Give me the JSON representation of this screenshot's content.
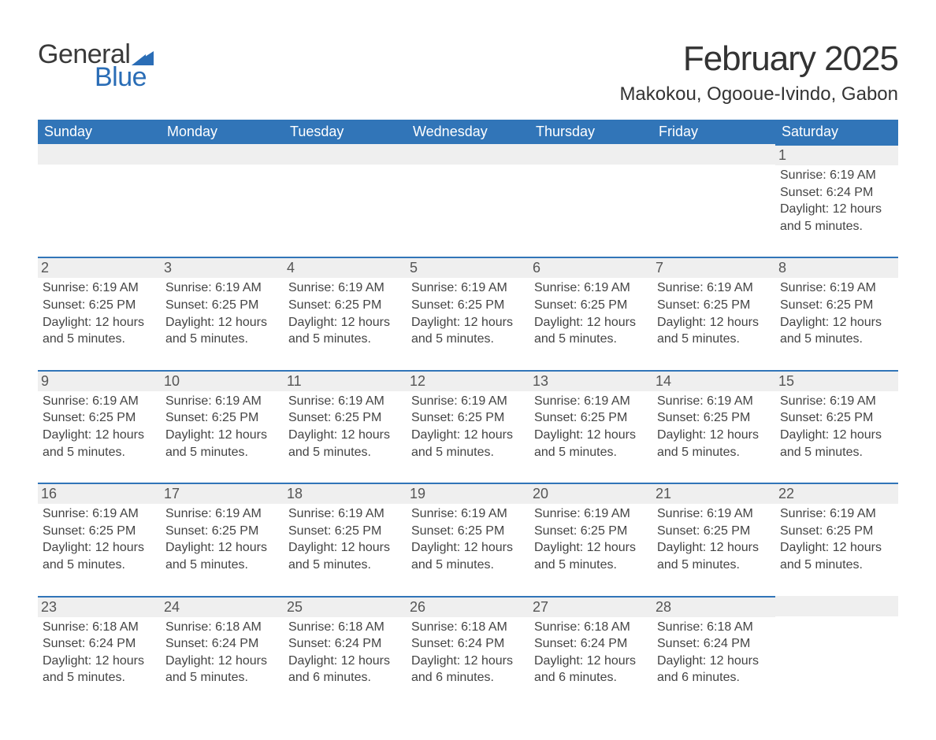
{
  "logo": {
    "text_general": "General",
    "text_blue": "Blue"
  },
  "header": {
    "month_title": "February 2025",
    "location": "Makokou, Ogooue-Ivindo, Gabon"
  },
  "colors": {
    "header_bg": "#3175b8",
    "header_text": "#ffffff",
    "day_stripe": "#efefef",
    "day_border": "#3175b8",
    "body_text": "#444444",
    "logo_dark": "#3a3a3a",
    "logo_blue": "#2a6db6",
    "page_bg": "#ffffff"
  },
  "typography": {
    "month_title_fontsize": 44,
    "location_fontsize": 24,
    "weekday_fontsize": 18,
    "daynum_fontsize": 18,
    "dayinfo_fontsize": 16,
    "logo_fontsize": 34
  },
  "weekdays": [
    "Sunday",
    "Monday",
    "Tuesday",
    "Wednesday",
    "Thursday",
    "Friday",
    "Saturday"
  ],
  "weeks": [
    [
      {
        "day": null
      },
      {
        "day": null
      },
      {
        "day": null
      },
      {
        "day": null
      },
      {
        "day": null
      },
      {
        "day": null
      },
      {
        "day": 1,
        "sunrise": "Sunrise: 6:19 AM",
        "sunset": "Sunset: 6:24 PM",
        "daylight": "Daylight: 12 hours and 5 minutes."
      }
    ],
    [
      {
        "day": 2,
        "sunrise": "Sunrise: 6:19 AM",
        "sunset": "Sunset: 6:25 PM",
        "daylight": "Daylight: 12 hours and 5 minutes."
      },
      {
        "day": 3,
        "sunrise": "Sunrise: 6:19 AM",
        "sunset": "Sunset: 6:25 PM",
        "daylight": "Daylight: 12 hours and 5 minutes."
      },
      {
        "day": 4,
        "sunrise": "Sunrise: 6:19 AM",
        "sunset": "Sunset: 6:25 PM",
        "daylight": "Daylight: 12 hours and 5 minutes."
      },
      {
        "day": 5,
        "sunrise": "Sunrise: 6:19 AM",
        "sunset": "Sunset: 6:25 PM",
        "daylight": "Daylight: 12 hours and 5 minutes."
      },
      {
        "day": 6,
        "sunrise": "Sunrise: 6:19 AM",
        "sunset": "Sunset: 6:25 PM",
        "daylight": "Daylight: 12 hours and 5 minutes."
      },
      {
        "day": 7,
        "sunrise": "Sunrise: 6:19 AM",
        "sunset": "Sunset: 6:25 PM",
        "daylight": "Daylight: 12 hours and 5 minutes."
      },
      {
        "day": 8,
        "sunrise": "Sunrise: 6:19 AM",
        "sunset": "Sunset: 6:25 PM",
        "daylight": "Daylight: 12 hours and 5 minutes."
      }
    ],
    [
      {
        "day": 9,
        "sunrise": "Sunrise: 6:19 AM",
        "sunset": "Sunset: 6:25 PM",
        "daylight": "Daylight: 12 hours and 5 minutes."
      },
      {
        "day": 10,
        "sunrise": "Sunrise: 6:19 AM",
        "sunset": "Sunset: 6:25 PM",
        "daylight": "Daylight: 12 hours and 5 minutes."
      },
      {
        "day": 11,
        "sunrise": "Sunrise: 6:19 AM",
        "sunset": "Sunset: 6:25 PM",
        "daylight": "Daylight: 12 hours and 5 minutes."
      },
      {
        "day": 12,
        "sunrise": "Sunrise: 6:19 AM",
        "sunset": "Sunset: 6:25 PM",
        "daylight": "Daylight: 12 hours and 5 minutes."
      },
      {
        "day": 13,
        "sunrise": "Sunrise: 6:19 AM",
        "sunset": "Sunset: 6:25 PM",
        "daylight": "Daylight: 12 hours and 5 minutes."
      },
      {
        "day": 14,
        "sunrise": "Sunrise: 6:19 AM",
        "sunset": "Sunset: 6:25 PM",
        "daylight": "Daylight: 12 hours and 5 minutes."
      },
      {
        "day": 15,
        "sunrise": "Sunrise: 6:19 AM",
        "sunset": "Sunset: 6:25 PM",
        "daylight": "Daylight: 12 hours and 5 minutes."
      }
    ],
    [
      {
        "day": 16,
        "sunrise": "Sunrise: 6:19 AM",
        "sunset": "Sunset: 6:25 PM",
        "daylight": "Daylight: 12 hours and 5 minutes."
      },
      {
        "day": 17,
        "sunrise": "Sunrise: 6:19 AM",
        "sunset": "Sunset: 6:25 PM",
        "daylight": "Daylight: 12 hours and 5 minutes."
      },
      {
        "day": 18,
        "sunrise": "Sunrise: 6:19 AM",
        "sunset": "Sunset: 6:25 PM",
        "daylight": "Daylight: 12 hours and 5 minutes."
      },
      {
        "day": 19,
        "sunrise": "Sunrise: 6:19 AM",
        "sunset": "Sunset: 6:25 PM",
        "daylight": "Daylight: 12 hours and 5 minutes."
      },
      {
        "day": 20,
        "sunrise": "Sunrise: 6:19 AM",
        "sunset": "Sunset: 6:25 PM",
        "daylight": "Daylight: 12 hours and 5 minutes."
      },
      {
        "day": 21,
        "sunrise": "Sunrise: 6:19 AM",
        "sunset": "Sunset: 6:25 PM",
        "daylight": "Daylight: 12 hours and 5 minutes."
      },
      {
        "day": 22,
        "sunrise": "Sunrise: 6:19 AM",
        "sunset": "Sunset: 6:25 PM",
        "daylight": "Daylight: 12 hours and 5 minutes."
      }
    ],
    [
      {
        "day": 23,
        "sunrise": "Sunrise: 6:18 AM",
        "sunset": "Sunset: 6:24 PM",
        "daylight": "Daylight: 12 hours and 5 minutes."
      },
      {
        "day": 24,
        "sunrise": "Sunrise: 6:18 AM",
        "sunset": "Sunset: 6:24 PM",
        "daylight": "Daylight: 12 hours and 5 minutes."
      },
      {
        "day": 25,
        "sunrise": "Sunrise: 6:18 AM",
        "sunset": "Sunset: 6:24 PM",
        "daylight": "Daylight: 12 hours and 6 minutes."
      },
      {
        "day": 26,
        "sunrise": "Sunrise: 6:18 AM",
        "sunset": "Sunset: 6:24 PM",
        "daylight": "Daylight: 12 hours and 6 minutes."
      },
      {
        "day": 27,
        "sunrise": "Sunrise: 6:18 AM",
        "sunset": "Sunset: 6:24 PM",
        "daylight": "Daylight: 12 hours and 6 minutes."
      },
      {
        "day": 28,
        "sunrise": "Sunrise: 6:18 AM",
        "sunset": "Sunset: 6:24 PM",
        "daylight": "Daylight: 12 hours and 6 minutes."
      },
      {
        "day": null
      }
    ]
  ]
}
